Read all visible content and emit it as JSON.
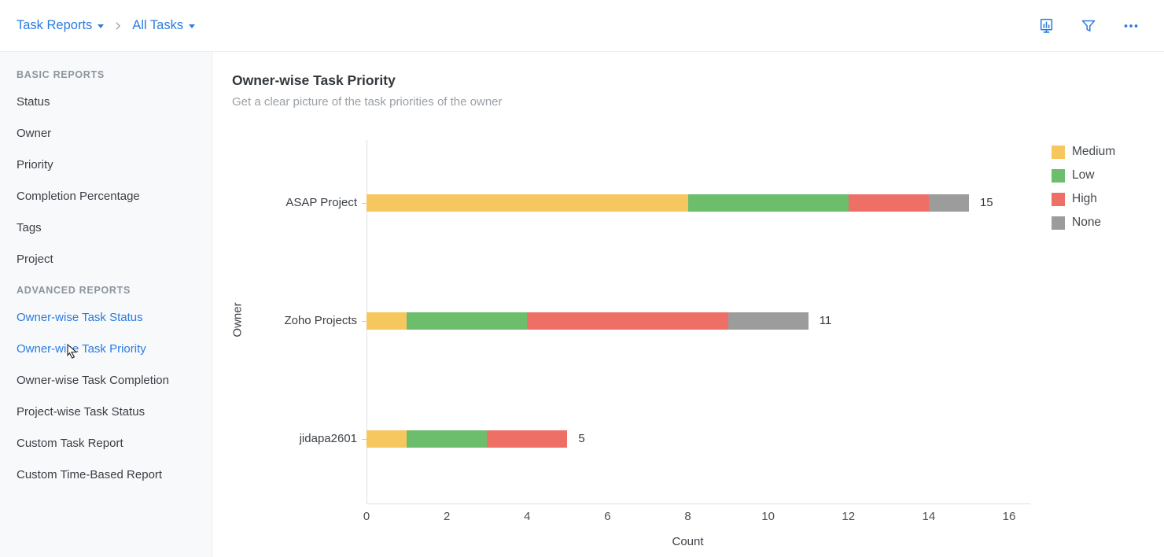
{
  "breadcrumb": {
    "primary": "Task Reports",
    "secondary": "All Tasks"
  },
  "toolbar": {
    "icons": [
      {
        "name": "report-icon"
      },
      {
        "name": "filter-icon"
      },
      {
        "name": "more-icon"
      }
    ]
  },
  "colors": {
    "accent": "#2a7ce0",
    "medium": "#F6C65F",
    "low": "#6CBE6C",
    "high": "#EE6F66",
    "none": "#9C9C9C"
  },
  "sidebar": {
    "sections": [
      {
        "heading": "BASIC REPORTS",
        "items": [
          {
            "label": "Status"
          },
          {
            "label": "Owner"
          },
          {
            "label": "Priority"
          },
          {
            "label": "Completion Percentage"
          },
          {
            "label": "Tags"
          },
          {
            "label": "Project"
          }
        ]
      },
      {
        "heading": "ADVANCED REPORTS",
        "items": [
          {
            "label": "Owner-wise Task Status",
            "hovered": true
          },
          {
            "label": "Owner-wise Task Priority",
            "active": true
          },
          {
            "label": "Owner-wise Task Completion"
          },
          {
            "label": "Project-wise Task Status"
          },
          {
            "label": "Custom Task Report"
          },
          {
            "label": "Custom Time-Based Report"
          }
        ]
      }
    ]
  },
  "main": {
    "title": "Owner-wise Task Priority",
    "subtitle": "Get a clear picture of the task priorities of the owner"
  },
  "chart_data": {
    "type": "bar",
    "orientation": "horizontal",
    "stacked": true,
    "title": "Owner-wise Task Priority",
    "xlabel": "Count",
    "ylabel": "Owner",
    "xlim": [
      0,
      16
    ],
    "xticks": [
      0,
      2,
      4,
      6,
      8,
      10,
      12,
      14,
      16
    ],
    "grid": false,
    "legend_position": "top-right",
    "categories": [
      "ASAP Project",
      "Zoho Projects",
      "jidapa2601"
    ],
    "series": [
      {
        "name": "Medium",
        "color": "#F6C65F",
        "values": [
          8,
          1,
          1
        ]
      },
      {
        "name": "Low",
        "color": "#6CBE6C",
        "values": [
          4,
          3,
          2
        ]
      },
      {
        "name": "High",
        "color": "#EE6F66",
        "values": [
          2,
          5,
          2
        ]
      },
      {
        "name": "None",
        "color": "#9C9C9C",
        "values": [
          1,
          2,
          0
        ]
      }
    ],
    "totals": [
      15,
      11,
      5
    ]
  }
}
